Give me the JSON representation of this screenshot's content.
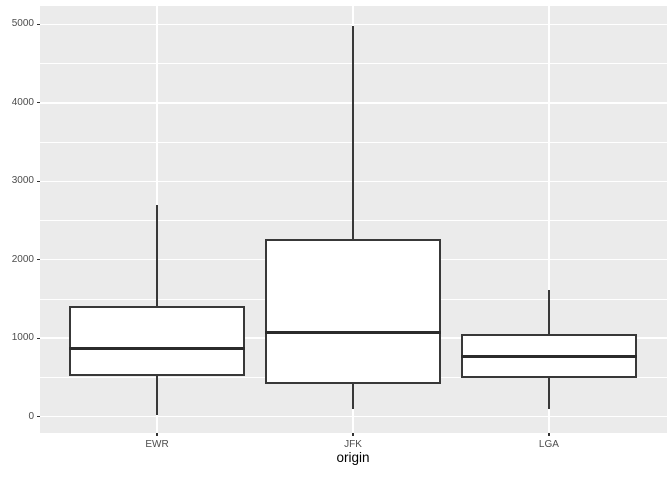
{
  "chart_data": {
    "type": "boxplot",
    "title": "",
    "xlabel": "origin",
    "ylabel": "",
    "categories": [
      "EWR",
      "JFK",
      "LGA"
    ],
    "series": [
      {
        "category": "EWR",
        "whisker_low": 17,
        "q1": 533,
        "median": 872,
        "q3": 1400,
        "whisker_high": 2700,
        "outliers": []
      },
      {
        "category": "JFK",
        "whisker_low": 94,
        "q1": 427,
        "median": 1069,
        "q3": 2248,
        "whisker_high": 4983,
        "outliers": []
      },
      {
        "category": "LGA",
        "whisker_low": 96,
        "q1": 502,
        "median": 762,
        "q3": 1035,
        "whisker_high": 1620,
        "outliers": []
      }
    ],
    "y_axis": {
      "ticks": [
        0,
        1000,
        2000,
        3000,
        4000,
        5000
      ],
      "tick_labels": [
        "0",
        "1000",
        "2000",
        "3000",
        "4000",
        "5000"
      ],
      "minor_ticks": [
        500,
        1500,
        2500,
        3500,
        4500
      ],
      "ylim": [
        -208,
        5240
      ]
    },
    "x_axis": {
      "band_centers": [
        0.1875,
        0.5,
        0.8125
      ],
      "box_width_frac": 0.2807
    },
    "grid": true,
    "legend": false,
    "style": {
      "panel_bg": "#EBEBEB",
      "grid_color": "#FFFFFF",
      "box_fill": "#FFFFFF",
      "box_border": "#383838",
      "median_color": "#2B2B2B",
      "tick_color": "#333333",
      "axis_text_color": "#4D4D4D",
      "axis_title_color": "#000000",
      "plot_bg": "#FFFFFF"
    }
  }
}
